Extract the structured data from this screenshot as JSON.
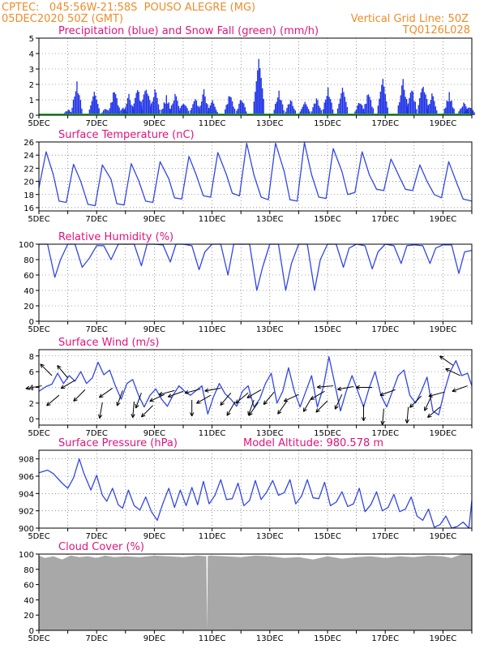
{
  "header": {
    "line1": "CPTEC:   045:56W-21:58S  POUSO ALEGRE (MG)",
    "line2": "05DEC2020 50Z (GMT)",
    "grid_note": "Vertical Grid Line: 50Z",
    "code": "TQ0126L028",
    "colors": {
      "header": "#f08c28",
      "title": "#e0147c"
    }
  },
  "chart_data": [
    {
      "type": "bar",
      "title": "Precipitation (blue) and Snow Fall (green) (mm/h)",
      "x_tick_labels": [
        "5DEC",
        "7DEC",
        "9DEC",
        "11DEC",
        "13DEC",
        "15DEC",
        "17DEC",
        "19DEC"
      ],
      "x_range_days": [
        5,
        20
      ],
      "ylim": [
        0,
        5
      ],
      "yticks": [
        0,
        1,
        2,
        3,
        4,
        5
      ],
      "series": [
        {
          "color": "#1e32e6",
          "values": [
            [
              6.0,
              0.4
            ],
            [
              6.3,
              2.2
            ],
            [
              6.9,
              1.6
            ],
            [
              7.3,
              0.5
            ],
            [
              7.6,
              1.8
            ],
            [
              7.9,
              0.5
            ],
            [
              8.1,
              1.4
            ],
            [
              8.4,
              1.9
            ],
            [
              8.7,
              2.2
            ],
            [
              9.0,
              1.8
            ],
            [
              9.4,
              1.3
            ],
            [
              9.7,
              1.5
            ],
            [
              10.0,
              1.0
            ],
            [
              10.4,
              1.2
            ],
            [
              10.7,
              1.7
            ],
            [
              11.0,
              1.0
            ],
            [
              11.6,
              1.5
            ],
            [
              12.0,
              1.2
            ],
            [
              12.6,
              3.8
            ],
            [
              13.3,
              1.6
            ],
            [
              13.7,
              1.1
            ],
            [
              14.2,
              1.2
            ],
            [
              14.6,
              1.2
            ],
            [
              15.0,
              1.8
            ],
            [
              15.5,
              1.9
            ],
            [
              16.1,
              1.0
            ],
            [
              16.4,
              1.6
            ],
            [
              16.9,
              2.4
            ],
            [
              17.6,
              2.4
            ],
            [
              17.9,
              1.9
            ],
            [
              18.3,
              2.4
            ],
            [
              18.6,
              1.5
            ],
            [
              19.2,
              1.5
            ],
            [
              19.7,
              0.9
            ],
            [
              19.9,
              0.7
            ]
          ]
        },
        {
          "color": "#1eb41e",
          "values": []
        }
      ]
    },
    {
      "type": "line",
      "title": "Surface Temperature (nC)",
      "ylim": [
        15.5,
        26
      ],
      "yticks": [
        16,
        18,
        20,
        22,
        24,
        26
      ],
      "color": "#3246e6",
      "x": [
        5.0,
        5.25,
        5.5,
        5.7,
        5.95,
        6.2,
        6.45,
        6.7,
        6.95,
        7.2,
        7.5,
        7.7,
        7.95,
        8.2,
        8.45,
        8.7,
        8.95,
        9.2,
        9.5,
        9.7,
        9.95,
        10.2,
        10.45,
        10.7,
        10.95,
        11.2,
        11.5,
        11.7,
        11.95,
        12.2,
        12.45,
        12.7,
        12.95,
        13.2,
        13.5,
        13.7,
        13.95,
        14.2,
        14.45,
        14.7,
        14.95,
        15.2,
        15.5,
        15.7,
        15.95,
        16.2,
        16.45,
        16.7,
        16.95,
        17.2,
        17.5,
        17.7,
        17.95,
        18.2,
        18.45,
        18.7,
        18.95,
        19.2,
        19.5,
        19.7,
        20.0
      ],
      "y": [
        19.0,
        24.5,
        21.0,
        17.0,
        16.8,
        22.6,
        20.0,
        16.5,
        16.3,
        22.5,
        20.3,
        16.6,
        16.4,
        22.7,
        20.2,
        17.0,
        16.8,
        23.0,
        20.4,
        17.5,
        17.3,
        23.8,
        21.0,
        17.8,
        17.6,
        24.4,
        21.0,
        18.2,
        17.8,
        25.8,
        21.0,
        17.6,
        17.2,
        25.8,
        21.5,
        17.2,
        17.0,
        25.9,
        21.0,
        17.6,
        17.4,
        25.0,
        21.5,
        18.0,
        18.3,
        24.5,
        21.0,
        18.8,
        18.6,
        23.4,
        20.6,
        18.8,
        18.6,
        22.5,
        20.0,
        18.0,
        17.5,
        23.0,
        19.5,
        17.3,
        17.0
      ]
    },
    {
      "type": "line",
      "title": "Relative Humidity (%)",
      "ylim": [
        0,
        100
      ],
      "yticks": [
        0,
        20,
        40,
        60,
        80,
        100
      ],
      "color": "#3246e6",
      "x": [
        5.0,
        5.3,
        5.55,
        5.75,
        6.0,
        6.25,
        6.5,
        6.75,
        7.0,
        7.25,
        7.5,
        7.75,
        8.0,
        8.3,
        8.55,
        8.75,
        9.0,
        9.3,
        9.55,
        9.75,
        10.0,
        10.3,
        10.55,
        10.75,
        11.0,
        11.3,
        11.55,
        11.75,
        12.0,
        12.3,
        12.55,
        12.75,
        13.0,
        13.3,
        13.55,
        13.75,
        14.0,
        14.3,
        14.55,
        14.75,
        15.0,
        15.3,
        15.55,
        15.75,
        16.0,
        16.3,
        16.55,
        16.75,
        17.0,
        17.3,
        17.55,
        17.75,
        18.0,
        18.3,
        18.55,
        18.75,
        19.0,
        19.3,
        19.55,
        19.75,
        20.0
      ],
      "y": [
        100,
        100,
        57,
        80,
        100,
        100,
        70,
        82,
        98,
        98,
        80,
        100,
        100,
        100,
        72,
        100,
        100,
        99,
        77,
        100,
        100,
        98,
        67,
        90,
        100,
        100,
        60,
        100,
        100,
        100,
        40,
        70,
        100,
        100,
        40,
        75,
        100,
        100,
        40,
        80,
        100,
        100,
        70,
        95,
        100,
        98,
        68,
        90,
        100,
        98,
        75,
        98,
        99,
        98,
        75,
        95,
        99,
        99,
        62,
        90,
        92
      ]
    },
    {
      "type": "line",
      "title": "Surface Wind (m/s)",
      "ylim": [
        -0.8,
        8.8
      ],
      "yticks": [
        0,
        2,
        4,
        6,
        8
      ],
      "color": "#3246e6",
      "x": [
        5.0,
        5.25,
        5.45,
        5.65,
        5.85,
        6.05,
        6.25,
        6.45,
        6.65,
        6.85,
        7.05,
        7.25,
        7.45,
        7.65,
        7.85,
        8.05,
        8.25,
        8.45,
        8.65,
        8.85,
        9.05,
        9.25,
        9.45,
        9.65,
        9.85,
        10.05,
        10.25,
        10.45,
        10.65,
        10.85,
        11.05,
        11.25,
        11.45,
        11.65,
        11.85,
        12.05,
        12.25,
        12.45,
        12.65,
        12.85,
        13.05,
        13.25,
        13.45,
        13.65,
        13.85,
        14.05,
        14.25,
        14.45,
        14.65,
        14.85,
        15.05,
        15.25,
        15.45,
        15.65,
        15.85,
        16.05,
        16.25,
        16.45,
        16.65,
        16.85,
        17.05,
        17.25,
        17.45,
        17.65,
        17.85,
        18.05,
        18.25,
        18.45,
        18.65,
        18.85,
        19.05,
        19.25,
        19.45,
        19.65,
        19.85,
        20.0
      ],
      "y": [
        3.5,
        4.1,
        4.4,
        5.8,
        4.5,
        5.5,
        4.8,
        6.0,
        4.5,
        5.2,
        7.2,
        5.6,
        6.2,
        4.2,
        2.5,
        4.5,
        5.0,
        3.0,
        1.5,
        3.0,
        3.8,
        2.5,
        1.6,
        3.0,
        4.2,
        3.5,
        3.0,
        3.6,
        4.2,
        0.6,
        2.8,
        4.5,
        3.2,
        2.5,
        1.6,
        3.5,
        4.2,
        1.5,
        2.5,
        4.5,
        5.8,
        2.0,
        3.5,
        6.5,
        3.5,
        1.5,
        3.5,
        5.5,
        1.5,
        4.0,
        7.9,
        4.5,
        1.0,
        3.5,
        5.5,
        3.5,
        1.5,
        4.0,
        6.0,
        3.0,
        1.5,
        3.5,
        5.5,
        6.2,
        3.0,
        2.0,
        3.5,
        5.3,
        1.0,
        0.5,
        3.5,
        6.0,
        7.4,
        5.5,
        5.8,
        4.2
      ],
      "arrows": [
        [
          5.1,
          4.2,
          190
        ],
        [
          5.45,
          5.5,
          135
        ],
        [
          5.7,
          3.0,
          220
        ],
        [
          6.0,
          5.2,
          130
        ],
        [
          6.25,
          4.9,
          210
        ],
        [
          6.6,
          3.7,
          225
        ],
        [
          7.2,
          2.1,
          260
        ],
        [
          7.55,
          3.9,
          215
        ],
        [
          7.9,
          3.6,
          250
        ],
        [
          8.3,
          2.2,
          265
        ],
        [
          8.55,
          3.3,
          250
        ],
        [
          8.95,
          1.7,
          225
        ],
        [
          9.35,
          3.1,
          205
        ],
        [
          9.7,
          3.6,
          195
        ],
        [
          10.0,
          3.5,
          200
        ],
        [
          10.3,
          2.4,
          270
        ],
        [
          10.6,
          3.8,
          195
        ],
        [
          10.95,
          3.0,
          210
        ],
        [
          11.3,
          3.9,
          190
        ],
        [
          11.65,
          3.3,
          230
        ],
        [
          11.8,
          2.2,
          240
        ],
        [
          12.25,
          3.3,
          220
        ],
        [
          12.45,
          2.4,
          250
        ],
        [
          12.6,
          2.1,
          235
        ],
        [
          12.7,
          3.7,
          210
        ],
        [
          13.15,
          3.4,
          230
        ],
        [
          13.6,
          2.3,
          235
        ],
        [
          14.0,
          3.1,
          205
        ],
        [
          14.45,
          2.7,
          240
        ],
        [
          14.9,
          3.5,
          210
        ],
        [
          15.0,
          2.3,
          225
        ],
        [
          15.2,
          4.2,
          185
        ],
        [
          15.5,
          3.1,
          245
        ],
        [
          15.9,
          4.1,
          190
        ],
        [
          16.25,
          1.8,
          270
        ],
        [
          16.55,
          4.0,
          180
        ],
        [
          16.95,
          1.3,
          265
        ],
        [
          17.35,
          3.7,
          200
        ],
        [
          17.8,
          1.5,
          265
        ],
        [
          18.25,
          2.9,
          225
        ],
        [
          18.6,
          2.9,
          245
        ],
        [
          18.9,
          1.5,
          220
        ],
        [
          19.05,
          3.4,
          195
        ],
        [
          19.35,
          6.8,
          145
        ],
        [
          19.6,
          5.5,
          155
        ],
        [
          19.85,
          4.2,
          200
        ]
      ]
    },
    {
      "type": "line",
      "title": "Surface Pressure (hPa)",
      "annotation": "Model Altitude: 980.578 m",
      "ylim": [
        900,
        909
      ],
      "yticks": [
        900,
        902,
        904,
        906,
        908
      ],
      "color": "#3246e6",
      "x": [
        5.0,
        5.3,
        5.5,
        5.8,
        6.0,
        6.2,
        6.4,
        6.55,
        6.8,
        7.0,
        7.2,
        7.35,
        7.55,
        7.75,
        7.9,
        8.1,
        8.3,
        8.5,
        8.7,
        8.9,
        9.1,
        9.3,
        9.5,
        9.7,
        9.9,
        10.1,
        10.3,
        10.5,
        10.7,
        10.9,
        11.1,
        11.3,
        11.5,
        11.7,
        11.9,
        12.1,
        12.3,
        12.5,
        12.7,
        12.9,
        13.1,
        13.3,
        13.5,
        13.7,
        13.9,
        14.1,
        14.3,
        14.5,
        14.7,
        14.9,
        15.1,
        15.3,
        15.5,
        15.7,
        15.9,
        16.1,
        16.3,
        16.5,
        16.7,
        16.9,
        17.1,
        17.3,
        17.5,
        17.7,
        17.9,
        18.1,
        18.3,
        18.5,
        18.7,
        18.9,
        19.1,
        19.3,
        19.5,
        19.7,
        19.9,
        20.0
      ],
      "y": [
        906.4,
        906.7,
        906.3,
        905.2,
        904.6,
        905.8,
        908.0,
        906.4,
        904.4,
        906.1,
        903.8,
        903.1,
        904.6,
        902.7,
        902.3,
        904.4,
        902.6,
        902.1,
        903.6,
        901.9,
        900.9,
        902.9,
        904.6,
        902.4,
        904.4,
        902.6,
        904.7,
        902.7,
        905.4,
        902.8,
        903.8,
        905.6,
        903.3,
        903.4,
        905.2,
        902.6,
        903.2,
        905.5,
        903.3,
        904.2,
        905.5,
        903.8,
        904.1,
        905.6,
        902.8,
        903.7,
        905.6,
        903.5,
        903.4,
        905.3,
        902.6,
        903.0,
        904.2,
        902.5,
        902.8,
        904.6,
        901.9,
        902.7,
        904.2,
        902.0,
        902.4,
        903.9,
        901.9,
        902.2,
        903.6,
        901.4,
        900.9,
        902.2,
        900.1,
        900.4,
        901.4,
        899.8,
        900.2,
        900.7,
        900.0,
        903.2
      ]
    },
    {
      "type": "area",
      "title": "Cloud Cover (%)",
      "ylim": [
        0,
        100
      ],
      "yticks": [
        0,
        20,
        40,
        60,
        80,
        100
      ],
      "color": "#a8a8a8",
      "x": [
        5.0,
        5.2,
        5.5,
        5.8,
        6.1,
        6.4,
        6.7,
        7.0,
        7.3,
        7.6,
        8.0,
        8.5,
        9.0,
        9.5,
        10.0,
        10.5,
        10.8,
        10.83,
        10.85,
        10.9,
        11.5,
        12.0,
        12.5,
        13.0,
        13.5,
        14.0,
        14.5,
        15.0,
        15.5,
        16.0,
        16.5,
        17.0,
        17.5,
        18.0,
        18.5,
        19.0,
        19.3,
        19.6,
        20.0
      ],
      "y": [
        98,
        95,
        97,
        93,
        98,
        96,
        97,
        95,
        98,
        96,
        97,
        96,
        98,
        97,
        96,
        98,
        97,
        0,
        97,
        98,
        97,
        96,
        98,
        97,
        95,
        96,
        93,
        97,
        94,
        96,
        97,
        95,
        97,
        96,
        98,
        97,
        95,
        99,
        100
      ]
    }
  ]
}
